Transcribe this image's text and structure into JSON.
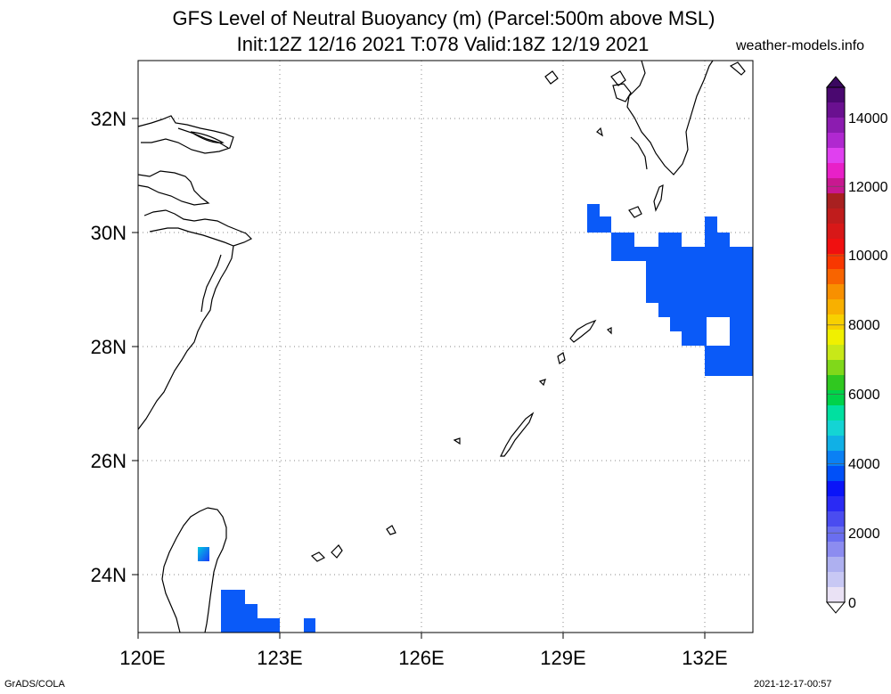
{
  "header": {
    "title_line1": "GFS Level of Neutral Buoyancy (m) (Parcel:500m above MSL)",
    "title_line2": "Init:12Z 12/16 2021 T:078 Valid:18Z 12/19 2021",
    "site": "weather-models.info"
  },
  "map": {
    "lat_labels": [
      "32N",
      "30N",
      "28N",
      "26N",
      "24N"
    ],
    "lon_labels": [
      "120E",
      "123E",
      "126E",
      "129E",
      "132E"
    ],
    "land_line_color": "#000000",
    "grid_color": "#888888"
  },
  "colorbar": {
    "labels": [
      "14000",
      "12000",
      "10000",
      "8000",
      "6000",
      "4000",
      "2000",
      "0"
    ],
    "colors": [
      "#eae2f5",
      "#c8c8f4",
      "#aeb0f0",
      "#8c8cf0",
      "#6a6ef0",
      "#4a4cf0",
      "#2a2af4",
      "#0a14f8",
      "#0050f8",
      "#0a80f4",
      "#10b0e6",
      "#14d4d4",
      "#00e0a0",
      "#00d24a",
      "#30c820",
      "#80d81a",
      "#c8e818",
      "#f0f000",
      "#f8d000",
      "#f8b000",
      "#f89000",
      "#f86400",
      "#f83800",
      "#f01010",
      "#d81818",
      "#c01c1c",
      "#a82020",
      "#c81890",
      "#e820c8",
      "#e040f0",
      "#b028d0",
      "#8c1cb0",
      "#6a1090",
      "#4a0870"
    ]
  },
  "footer": {
    "left": "GrADS/COLA",
    "right": "2021-12-17-00:57"
  }
}
